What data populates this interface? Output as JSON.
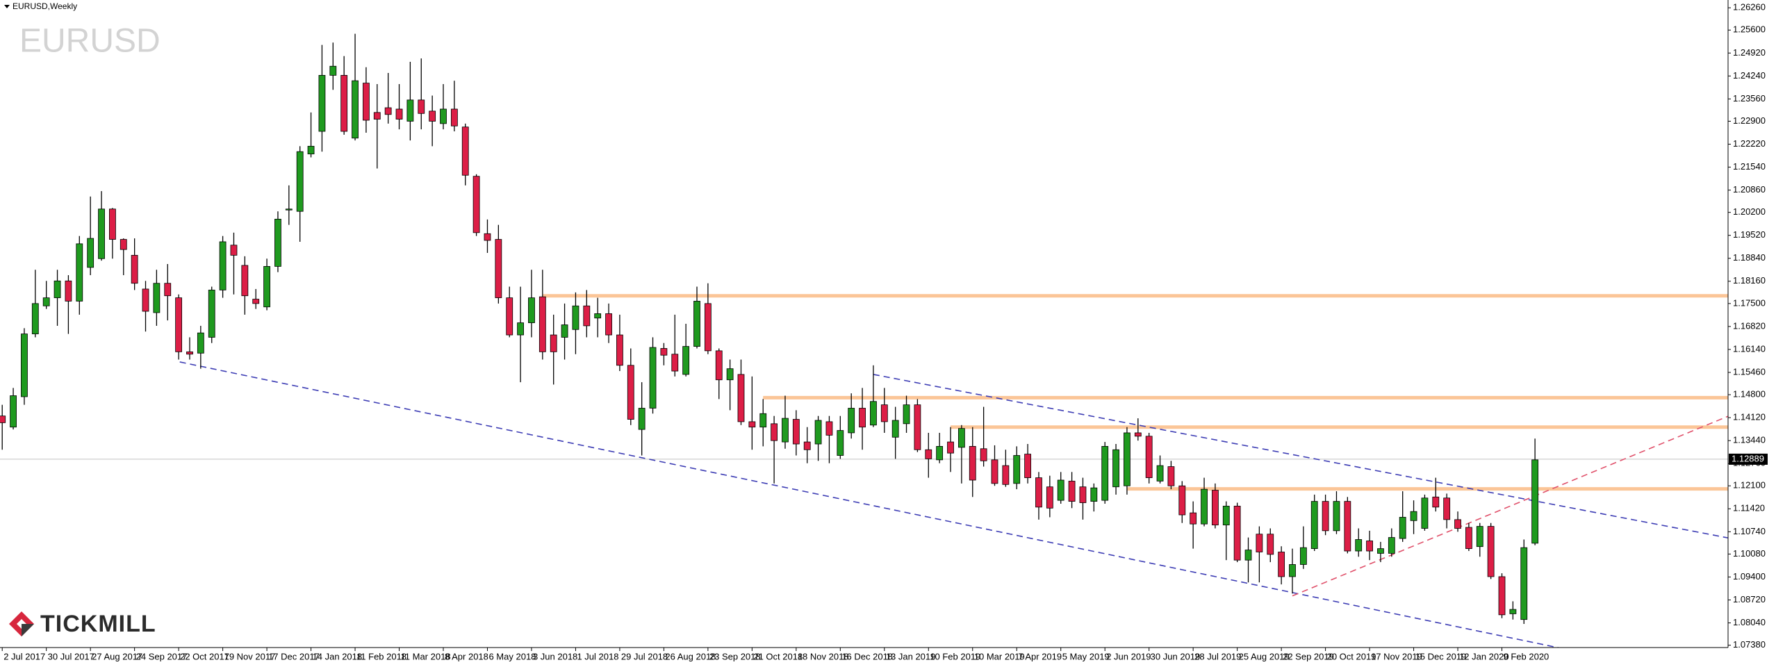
{
  "chart_data": {
    "type": "candlestick",
    "header": "EURUSD,Weekly",
    "title": "EURUSD",
    "up_color": "#1f9a1f",
    "down_color": "#dc1e46",
    "categories": [
      "2 Jul 2017",
      null,
      null,
      null,
      "30 Jul 2017",
      null,
      null,
      null,
      "27 Aug 2017",
      null,
      null,
      null,
      "24 Sep 2017",
      null,
      null,
      null,
      "22 Oct 2017",
      null,
      null,
      null,
      "19 Nov 2017",
      null,
      null,
      null,
      "17 Dec 2017",
      null,
      null,
      null,
      "14 Jan 2018",
      null,
      null,
      null,
      "11 Feb 2018",
      null,
      null,
      null,
      "11 Mar 2018",
      null,
      null,
      null,
      "8 Apr 2018",
      null,
      null,
      null,
      "6 May 2018",
      null,
      null,
      null,
      "3 Jun 2018",
      null,
      null,
      null,
      "1 Jul 2018",
      null,
      null,
      null,
      "29 Jul 2018",
      null,
      null,
      null,
      "26 Aug 2018",
      null,
      null,
      null,
      "23 Sep 2018",
      null,
      null,
      null,
      "21 Oct 2018",
      null,
      null,
      null,
      "18 Nov 2018",
      null,
      null,
      null,
      "16 Dec 2018",
      null,
      null,
      null,
      "13 Jan 2019",
      null,
      null,
      null,
      "10 Feb 2019",
      null,
      null,
      null,
      "10 Mar 2019",
      null,
      null,
      null,
      "7 Apr 2019",
      null,
      null,
      null,
      "5 May 2019",
      null,
      null,
      null,
      "2 Jun 2019",
      null,
      null,
      null,
      "30 Jun 2019",
      null,
      null,
      null,
      "28 Jul 2019",
      null,
      null,
      null,
      "25 Aug 2019",
      null,
      null,
      null,
      "22 Sep 2019",
      null,
      null,
      null,
      "20 Oct 2019",
      null,
      null,
      null,
      "17 Nov 2019",
      null,
      null,
      null,
      "15 Dec 2019",
      null,
      null,
      null,
      "12 Jan 2020",
      null,
      null,
      null,
      "9 Feb 2020",
      null,
      null,
      null
    ],
    "open": [
      1.1417,
      1.1384,
      1.1474,
      1.166,
      1.1743,
      1.1767,
      1.1817,
      1.1757,
      1.1857,
      1.1883,
      1.203,
      1.194,
      1.1893,
      1.1793,
      1.1723,
      1.181,
      1.1767,
      1.1607,
      1.1603,
      1.165,
      1.179,
      1.1923,
      1.1863,
      1.1763,
      1.174,
      1.186,
      1.2027,
      1.2023,
      1.2193,
      1.226,
      1.2426,
      1.2426,
      1.224,
      1.2403,
      1.2316,
      1.233,
      1.2326,
      1.229,
      1.2353,
      1.232,
      1.2283,
      1.2326,
      1.2273,
      1.2127,
      1.1957,
      1.194,
      1.1767,
      1.1657,
      1.1693,
      1.177,
      1.1657,
      1.165,
      1.1673,
      1.1743,
      1.1707,
      1.172,
      1.1657,
      1.1567,
      1.1377,
      1.144,
      1.1617,
      1.16,
      1.154,
      1.1623,
      1.175,
      1.161,
      1.1524,
      1.154,
      1.14,
      1.1384,
      1.1394,
      1.134,
      1.1407,
      1.134,
      1.1334,
      1.14,
      1.13,
      1.1367,
      1.144,
      1.139,
      1.145,
      1.1354,
      1.1394,
      1.145,
      1.1317,
      1.1287,
      1.134,
      1.1324,
      1.1327,
      1.132,
      1.1287,
      1.127,
      1.1217,
      1.1304,
      1.1234,
      1.1207,
      1.1167,
      1.1224,
      1.1207,
      1.1164,
      1.1167,
      1.1207,
      1.121,
      1.1367,
      1.1357,
      1.1224,
      1.1267,
      1.121,
      1.113,
      1.1097,
      1.1197,
      1.1094,
      1.115,
      1.099,
      1.1067,
      1.1067,
      1.1014,
      1.0941,
      1.0977,
      1.1024,
      1.1164,
      1.1077,
      1.1164,
      1.1017,
      1.1047,
      1.101,
      1.101,
      1.1054,
      1.1107,
      1.1084,
      1.1177,
      1.1174,
      1.111,
      1.1087,
      1.103,
      1.109,
      1.0941,
      1.0831,
      1.0814,
      1.104
    ],
    "high": [
      1.145,
      1.15,
      1.1677,
      1.185,
      1.1817,
      1.185,
      1.1834,
      1.195,
      1.2067,
      1.2083,
      1.2033,
      1.1943,
      1.1943,
      1.1817,
      1.185,
      1.1867,
      1.1777,
      1.165,
      1.1684,
      1.18,
      1.195,
      1.196,
      1.189,
      1.1793,
      1.1883,
      1.2023,
      1.21,
      1.2216,
      1.2316,
      1.2516,
      1.2523,
      1.2483,
      1.2549,
      1.245,
      1.24,
      1.2433,
      1.24,
      1.2466,
      1.2476,
      1.2366,
      1.24,
      1.241,
      1.2283,
      1.2133,
      1.1999,
      1.1983,
      1.18,
      1.18,
      1.185,
      1.185,
      1.1717,
      1.175,
      1.1783,
      1.179,
      1.1767,
      1.175,
      1.1717,
      1.1617,
      1.1517,
      1.165,
      1.1633,
      1.1717,
      1.169,
      1.18,
      1.181,
      1.1617,
      1.1584,
      1.1584,
      1.1534,
      1.1467,
      1.1417,
      1.1477,
      1.1434,
      1.1384,
      1.1417,
      1.1417,
      1.1417,
      1.1484,
      1.15,
      1.1567,
      1.15,
      1.1444,
      1.1477,
      1.1467,
      1.1367,
      1.1367,
      1.1384,
      1.139,
      1.1384,
      1.1444,
      1.133,
      1.1317,
      1.1327,
      1.1334,
      1.1251,
      1.124,
      1.1251,
      1.1251,
      1.1234,
      1.1217,
      1.134,
      1.1334,
      1.1384,
      1.141,
      1.1367,
      1.13,
      1.1284,
      1.1224,
      1.1164,
      1.1234,
      1.1217,
      1.1164,
      1.116,
      1.1057,
      1.109,
      1.1084,
      1.1031,
      1.1024,
      1.109,
      1.1184,
      1.1184,
      1.1194,
      1.1177,
      1.1084,
      1.1077,
      1.1044,
      1.1084,
      1.1194,
      1.1167,
      1.1184,
      1.1234,
      1.1187,
      1.1134,
      1.11,
      1.11,
      1.11,
      1.0951,
      1.0868,
      1.1051,
      1.135
    ],
    "low": [
      1.1317,
      1.1377,
      1.145,
      1.165,
      1.1734,
      1.1684,
      1.166,
      1.1717,
      1.1834,
      1.1877,
      1.1883,
      1.1834,
      1.179,
      1.1667,
      1.1684,
      1.17,
      1.1584,
      1.1584,
      1.1557,
      1.1633,
      1.1767,
      1.1777,
      1.1717,
      1.1734,
      1.173,
      1.1843,
      1.1983,
      1.1933,
      1.2183,
      1.22,
      1.2383,
      1.225,
      1.2233,
      1.2256,
      1.215,
      1.2283,
      1.2266,
      1.2233,
      1.2266,
      1.2216,
      1.2266,
      1.226,
      1.21,
      1.195,
      1.19,
      1.175,
      1.165,
      1.1517,
      1.165,
      1.1584,
      1.151,
      1.1584,
      1.16,
      1.165,
      1.165,
      1.1633,
      1.155,
      1.139,
      1.13,
      1.1424,
      1.1567,
      1.1534,
      1.1534,
      1.1617,
      1.16,
      1.1467,
      1.1434,
      1.139,
      1.1317,
      1.1327,
      1.1217,
      1.132,
      1.13,
      1.1277,
      1.1284,
      1.1277,
      1.129,
      1.135,
      1.1317,
      1.1384,
      1.1367,
      1.129,
      1.1367,
      1.131,
      1.1234,
      1.1277,
      1.1251,
      1.1217,
      1.1177,
      1.1267,
      1.121,
      1.1207,
      1.12,
      1.1217,
      1.111,
      1.1117,
      1.1157,
      1.1144,
      1.111,
      1.1134,
      1.1157,
      1.1184,
      1.1184,
      1.1344,
      1.1217,
      1.1217,
      1.12,
      1.11,
      1.1024,
      1.109,
      1.1084,
      1.099,
      1.0984,
      1.0924,
      1.0924,
      1.0984,
      1.0918,
      1.0891,
      1.0964,
      1.1017,
      1.1064,
      1.1067,
      1.101,
      1.1,
      1.099,
      1.0984,
      1.1,
      1.1044,
      1.1067,
      1.1077,
      1.1134,
      1.1084,
      1.1074,
      1.1017,
      1.1,
      1.0934,
      1.0818,
      1.0814,
      1.0801,
      1.1034
    ],
    "close": [
      1.1397,
      1.1477,
      1.166,
      1.175,
      1.1767,
      1.1817,
      1.1757,
      1.1927,
      1.1943,
      1.203,
      1.194,
      1.191,
      1.181,
      1.1727,
      1.181,
      1.1773,
      1.1607,
      1.16,
      1.1663,
      1.179,
      1.1933,
      1.1893,
      1.1773,
      1.175,
      1.186,
      1.2,
      1.203,
      1.22,
      1.2216,
      1.2426,
      1.2453,
      1.226,
      1.241,
      1.2293,
      1.2296,
      1.231,
      1.2296,
      1.2353,
      1.2313,
      1.229,
      1.2326,
      1.2276,
      1.213,
      1.196,
      1.1937,
      1.1767,
      1.1657,
      1.1693,
      1.1767,
      1.1607,
      1.1607,
      1.1687,
      1.1743,
      1.1684,
      1.172,
      1.1657,
      1.1567,
      1.1407,
      1.144,
      1.162,
      1.1597,
      1.155,
      1.1623,
      1.1757,
      1.161,
      1.1524,
      1.1557,
      1.14,
      1.1384,
      1.1424,
      1.1344,
      1.141,
      1.1334,
      1.1317,
      1.1404,
      1.136,
      1.1374,
      1.144,
      1.1384,
      1.146,
      1.14,
      1.1404,
      1.145,
      1.1317,
      1.129,
      1.1327,
      1.1307,
      1.138,
      1.1227,
      1.1284,
      1.1217,
      1.1214,
      1.13,
      1.1234,
      1.1147,
      1.1144,
      1.1227,
      1.1164,
      1.116,
      1.1204,
      1.1327,
      1.1317,
      1.1367,
      1.1357,
      1.1234,
      1.127,
      1.121,
      1.1124,
      1.1097,
      1.12,
      1.1094,
      1.115,
      1.099,
      1.102,
      1.1014,
      1.1007,
      1.0941,
      1.0977,
      1.1027,
      1.1164,
      1.1077,
      1.1164,
      1.1017,
      1.1051,
      1.1017,
      1.1024,
      1.1057,
      1.1117,
      1.1134,
      1.1174,
      1.1147,
      1.111,
      1.1084,
      1.1024,
      1.109,
      1.0941,
      1.0828,
      1.0844,
      1.1027,
      1.1287
    ],
    "ylim": [
      1.0731,
      1.2639
    ],
    "yticks": [
      {
        "value": 1.2626,
        "label": "1.26260"
      },
      {
        "value": 1.256,
        "label": "1.25600"
      },
      {
        "value": 1.2492,
        "label": "1.24920"
      },
      {
        "value": 1.2424,
        "label": "1.24240"
      },
      {
        "value": 1.2356,
        "label": "1.23560"
      },
      {
        "value": 1.229,
        "label": "1.22900"
      },
      {
        "value": 1.2222,
        "label": "1.22220"
      },
      {
        "value": 1.2154,
        "label": "1.21540"
      },
      {
        "value": 1.2086,
        "label": "1.20860"
      },
      {
        "value": 1.202,
        "label": "1.20200"
      },
      {
        "value": 1.1952,
        "label": "1.19520"
      },
      {
        "value": 1.1884,
        "label": "1.18840"
      },
      {
        "value": 1.1816,
        "label": "1.18160"
      },
      {
        "value": 1.175,
        "label": "1.17500"
      },
      {
        "value": 1.1682,
        "label": "1.16820"
      },
      {
        "value": 1.1614,
        "label": "1.16140"
      },
      {
        "value": 1.1546,
        "label": "1.15460"
      },
      {
        "value": 1.148,
        "label": "1.14800"
      },
      {
        "value": 1.1412,
        "label": "1.14120"
      },
      {
        "value": 1.1344,
        "label": "1.13440"
      },
      {
        "value": 1.1276,
        "label": "1.12760"
      },
      {
        "value": 1.121,
        "label": "1.12100"
      },
      {
        "value": 1.1142,
        "label": "1.11420"
      },
      {
        "value": 1.1074,
        "label": "1.10740"
      },
      {
        "value": 1.1008,
        "label": "1.10080"
      },
      {
        "value": 1.094,
        "label": "1.09400"
      },
      {
        "value": 1.0872,
        "label": "1.08720"
      },
      {
        "value": 1.0804,
        "label": "1.08040"
      },
      {
        "value": 1.0738,
        "label": "1.07380"
      }
    ],
    "current_price": 1.12889,
    "level_color": "#fbc597",
    "levels": [
      {
        "price": 1.1773,
        "from": 49
      },
      {
        "price": 1.1471,
        "from": 69
      },
      {
        "price": 1.1384,
        "from": 86
      },
      {
        "price": 1.1201,
        "from": 102
      }
    ],
    "trendlines": [
      {
        "color": "#3c3cb4",
        "points": [
          [
            79,
            1.154
          ],
          [
            156.8,
            1.1054
          ]
        ]
      },
      {
        "color": "#3c3cb4",
        "points": [
          [
            16.1,
            1.1577
          ],
          [
            141.5,
            1.0728
          ]
        ]
      },
      {
        "color": "#e0506a",
        "points": [
          [
            117,
            1.0884
          ],
          [
            156.8,
            1.142
          ]
        ]
      }
    ]
  },
  "logo": {
    "text": "TICKMILL"
  }
}
